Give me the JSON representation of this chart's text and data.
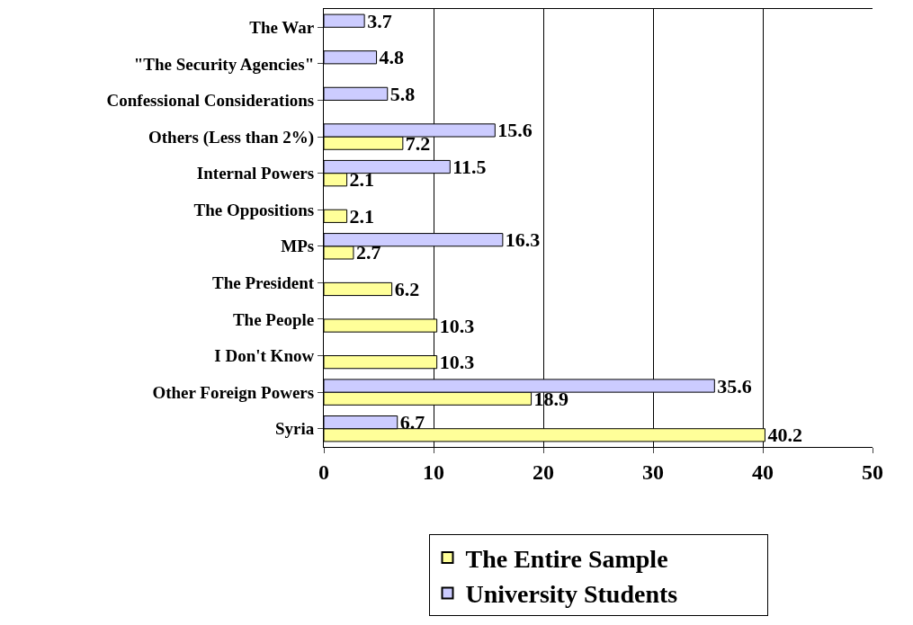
{
  "chart_data": {
    "type": "bar",
    "orientation": "horizontal",
    "categories": [
      "The War",
      "\"The Security Agencies\"",
      "Confessional Considerations",
      "Others (Less than 2%)",
      "Internal Powers",
      "The Oppositions",
      "MPs",
      "The President",
      "The People",
      "I Don't Know",
      "Other Foreign Powers",
      "Syria"
    ],
    "series": [
      {
        "name": "The Entire Sample",
        "color": "#ffff99",
        "values": [
          null,
          null,
          null,
          7.2,
          2.1,
          2.1,
          2.7,
          6.2,
          10.3,
          10.3,
          18.9,
          40.2
        ]
      },
      {
        "name": "University Students",
        "color": "#ccccff",
        "values": [
          3.7,
          4.8,
          5.8,
          15.6,
          11.5,
          null,
          16.3,
          null,
          null,
          null,
          35.6,
          6.7
        ]
      }
    ],
    "xlim": [
      0,
      50
    ],
    "xticks": [
      0,
      10,
      20,
      30,
      40,
      50
    ],
    "grid": "x",
    "legend": "bottom",
    "data_labels": true
  }
}
